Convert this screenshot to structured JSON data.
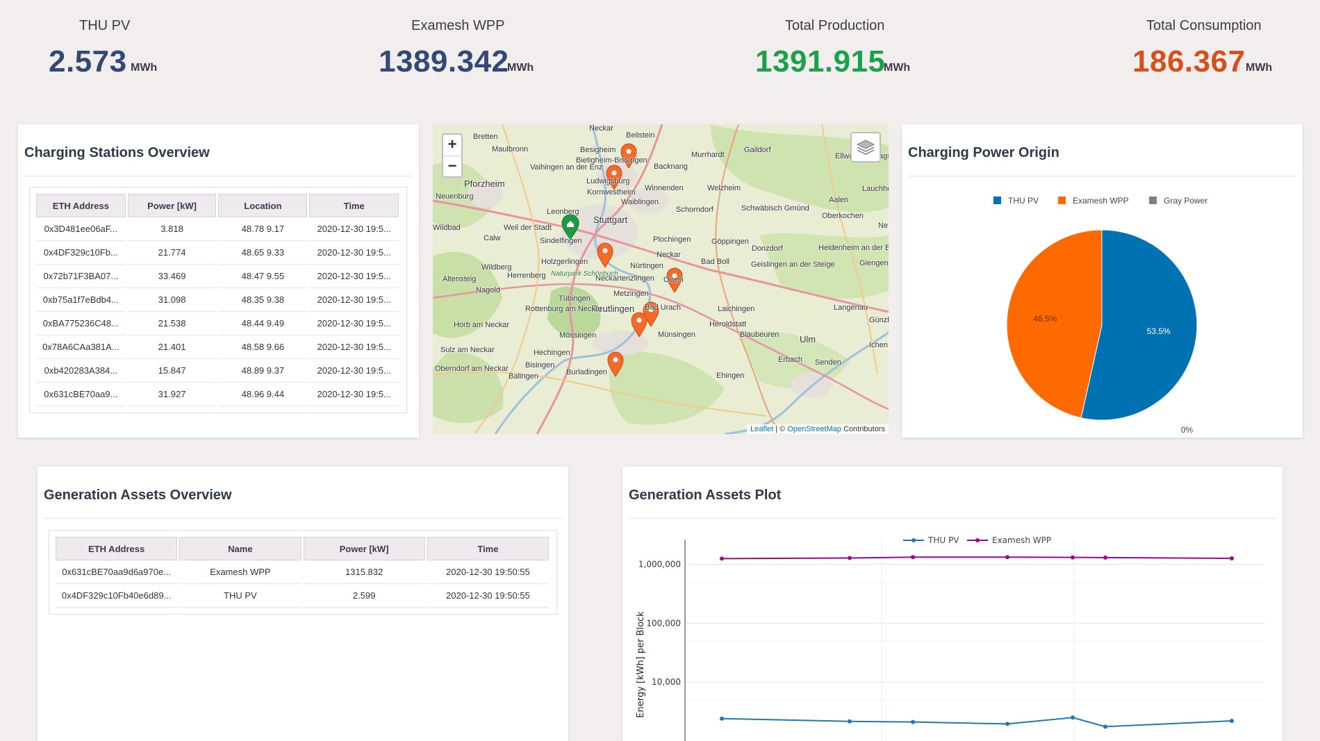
{
  "kpis": [
    {
      "title": "THU PV",
      "value": "2.573",
      "unit": "MWh",
      "color": "#334975"
    },
    {
      "title": "Examesh WPP",
      "value": "1389.342",
      "unit": "MWh",
      "color": "#334975"
    },
    {
      "title": "Total Production",
      "value": "1391.915",
      "unit": "MWh",
      "color": "#1aa14a"
    },
    {
      "title": "Total Consumption",
      "value": "186.367",
      "unit": "MWh",
      "color": "#d5501a"
    }
  ],
  "charging_stations": {
    "title": "Charging Stations Overview",
    "columns": [
      "ETH Address",
      "Power [kW]",
      "Location",
      "Time"
    ],
    "rows": [
      [
        "0x3D481ee06aF...",
        "3.818",
        "48.78 9.17",
        "2020-12-30 19:5..."
      ],
      [
        "0x4DF329c10Fb...",
        "21.774",
        "48.65 9.33",
        "2020-12-30 19:5..."
      ],
      [
        "0x72b71F3BA07...",
        "33.469",
        "48.47 9.55",
        "2020-12-30 19:5..."
      ],
      [
        "0xb75a1f7eBdb4...",
        "31.098",
        "48.35 9.38",
        "2020-12-30 19:5..."
      ],
      [
        "0xBA775236C48...",
        "21.538",
        "48.44 9.49",
        "2020-12-30 19:5..."
      ],
      [
        "0x78A6CAa381A...",
        "21.401",
        "48.58 9.66",
        "2020-12-30 19:5..."
      ],
      [
        "0xb420283A384...",
        "15.847",
        "48.89 9.37",
        "2020-12-30 19:5..."
      ],
      [
        "0x631cBE70aa9...",
        "31.927",
        "48.96 9.44",
        "2020-12-30 19:5..."
      ]
    ]
  },
  "map": {
    "zoom_in": "+",
    "zoom_out": "−",
    "layers_icon": "layers-icon",
    "attribution_leaflet": "Leaflet",
    "attribution_sep": "| ©",
    "attribution_osm": "OpenStreetMap",
    "attribution_tail": "Contributors",
    "labels": [
      "Neckar",
      "Beilstein",
      "Bretten",
      "Maulbronn",
      "Murrhardt",
      "Gaildorf",
      "Besigheim",
      "Bietigheim-Bissingen",
      "Vaihingen an der Enz",
      "Backnang",
      "Pforzheim",
      "Ludwigsburg",
      "Kornwestheim",
      "Winnenden",
      "Welzheim",
      "Ellwangen (Jagst)",
      "Lauchheim",
      "Neuenburg",
      "Waiblingen",
      "Schorndorf",
      "Schwäbisch Gmünd",
      "Aalen",
      "Leonberg",
      "Stuttgart",
      "Oberkochen",
      "Wildbad",
      "Weil der Stadt",
      "Calw",
      "Sindelfingen",
      "Plochingen",
      "Göppingen",
      "Donzdorf",
      "Heidenheim an der Brenz",
      "Holzgerlingen",
      "Nürtingen",
      "Neckar",
      "Bad Boll",
      "Geislingen an der Steige",
      "Wildberg",
      "Herrenberg",
      "Naturpark Schönbuch",
      "Neckartenzlingen",
      "Owen",
      "Altensteig",
      "Nagold",
      "Metzingen",
      "Tübingen",
      "Reutlingen",
      "Bad Urach",
      "Laichingen",
      "Langenau",
      "Rottenburg am Neckar",
      "Heroldstatt",
      "Horb am Neckar",
      "Mössingen",
      "Münsingen",
      "Blaubeuren",
      "Ulm",
      "Sulz am Neckar",
      "Hechingen",
      "Erbach",
      "Senden",
      "Oberndorf am Neckar",
      "Bisingen",
      "Balingen",
      "Burladingen",
      "Ehingen",
      "Günzb",
      "Ichen",
      "Ne",
      "Giengen a der Brenz"
    ]
  },
  "charging_power_origin": {
    "title": "Charging Power Origin",
    "chart_data": {
      "type": "pie",
      "categories": [
        "THU PV",
        "Examesh WPP",
        "Gray Power"
      ],
      "values": [
        53.5,
        46.5,
        0
      ],
      "data_labels": [
        "53.5%",
        "46.5%",
        "0%"
      ],
      "colors": [
        "#0072b2",
        "#ff6a00",
        "#808080"
      ],
      "legend": "top"
    }
  },
  "generation_assets": {
    "title": "Generation Assets Overview",
    "columns": [
      "ETH Address",
      "Name",
      "Power [kW]",
      "Time"
    ],
    "rows": [
      [
        "0x631cBE70aa9d6a970e...",
        "Examesh WPP",
        "1315.832",
        "2020-12-30 19:50:55"
      ],
      [
        "0x4DF329c10Fb40e6d89...",
        "THU PV",
        "2.599",
        "2020-12-30 19:50:55"
      ]
    ]
  },
  "generation_plot": {
    "title": "Generation Assets Plot",
    "chart_data": {
      "type": "line",
      "ylabel": "Energy [kWh] per Block",
      "y_scale": "log",
      "y_ticks": [
        10000,
        100000,
        1000000
      ],
      "y_tick_labels": [
        "10,000",
        "100,000",
        "1,000,000"
      ],
      "legend": "top",
      "series": [
        {
          "name": "THU PV",
          "color": "#1f77b4",
          "values": [
            2400,
            2150,
            2100,
            1950,
            2500,
            1750,
            2200
          ]
        },
        {
          "name": "Examesh WPP",
          "color": "#990a8a",
          "values": [
            1250000,
            1280000,
            1320000,
            1320000,
            1310000,
            1300000,
            1260000
          ]
        }
      ]
    }
  }
}
